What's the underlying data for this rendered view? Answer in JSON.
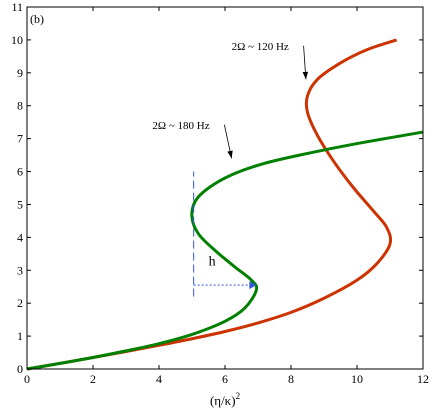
{
  "chart_data": {
    "type": "line",
    "panel_label": "(b)",
    "title": "",
    "xlabel": "(η/κ)",
    "xlabel_superscript": "2",
    "ylabel": "",
    "xlim": [
      0,
      12
    ],
    "ylim": [
      0,
      11
    ],
    "xticks": [
      0,
      2,
      4,
      6,
      8,
      10,
      12
    ],
    "yticks": [
      0,
      1,
      2,
      3,
      4,
      5,
      6,
      7,
      8,
      9,
      10,
      11
    ],
    "grid": false,
    "series": [
      {
        "color": "#cc3300",
        "points": [
          [
            0,
            0
          ],
          [
            1,
            0.17
          ],
          [
            2,
            0.35
          ],
          [
            3,
            0.53
          ],
          [
            4,
            0.72
          ],
          [
            5,
            0.92
          ],
          [
            6,
            1.14
          ],
          [
            7,
            1.4
          ],
          [
            8,
            1.72
          ],
          [
            9,
            2.15
          ],
          [
            10,
            2.7
          ],
          [
            10.6,
            3.2
          ],
          [
            11,
            3.8
          ],
          [
            10.9,
            4.3
          ],
          [
            10.5,
            4.8
          ],
          [
            9.9,
            5.5
          ],
          [
            9.3,
            6.3
          ],
          [
            8.8,
            7.1
          ],
          [
            8.5,
            7.8
          ],
          [
            8.5,
            8.3
          ],
          [
            8.8,
            8.8
          ],
          [
            9.5,
            9.3
          ],
          [
            10.3,
            9.7
          ],
          [
            11.2,
            10.0
          ]
        ]
      },
      {
        "color": "#008000",
        "points": [
          [
            0,
            0
          ],
          [
            1,
            0.17
          ],
          [
            2,
            0.35
          ],
          [
            3,
            0.55
          ],
          [
            4,
            0.77
          ],
          [
            5,
            1.05
          ],
          [
            6,
            1.45
          ],
          [
            6.6,
            1.85
          ],
          [
            6.95,
            2.4
          ],
          [
            6.8,
            2.7
          ],
          [
            6.3,
            3.1
          ],
          [
            5.7,
            3.6
          ],
          [
            5.2,
            4.1
          ],
          [
            5.0,
            4.6
          ],
          [
            5.1,
            5.1
          ],
          [
            5.5,
            5.5
          ],
          [
            6.2,
            5.9
          ],
          [
            7.2,
            6.25
          ],
          [
            8.5,
            6.55
          ],
          [
            10,
            6.85
          ],
          [
            12,
            7.2
          ]
        ]
      }
    ],
    "annotations": [
      {
        "id": "red",
        "text": "2Ω ~ 120 Hz",
        "x": 6.2,
        "y": 9.7,
        "arrow_to": [
          8.45,
          8.8
        ]
      },
      {
        "id": "green",
        "text": "2Ω ~ 180 Hz",
        "x": 3.8,
        "y": 7.3,
        "arrow_to": [
          6.2,
          6.4
        ]
      }
    ],
    "hysteresis_marker": {
      "label": "h",
      "vertical": {
        "x": 5.05,
        "y_from": 2.2,
        "y_to": 6.0
      },
      "horizontal": {
        "y": 2.55,
        "x_from": 5.05,
        "x_to": 6.95
      }
    }
  }
}
